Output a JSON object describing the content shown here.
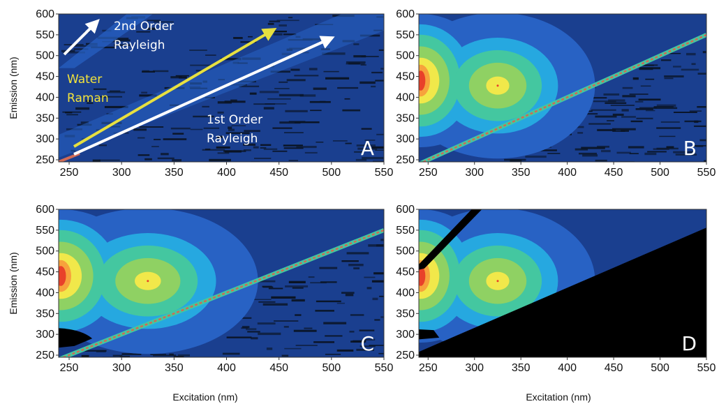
{
  "chart_data": [
    {
      "panel": "A",
      "type": "heatmap",
      "xlabel": "",
      "ylabel": "Emission (nm)",
      "xlim": [
        240,
        550
      ],
      "ylim": [
        245,
        600
      ],
      "xticks": [
        "250",
        "300",
        "350",
        "400",
        "450",
        "500",
        "550"
      ],
      "yticks": [
        "250",
        "300",
        "350",
        "400",
        "450",
        "500",
        "550",
        "600"
      ],
      "panel_label": "A",
      "annotations": [
        {
          "lines": [
            "2nd Order",
            "Rayleigh"
          ],
          "color": "#ffffff"
        },
        {
          "lines": [
            "Water",
            "Raman"
          ],
          "color": "#f2e33c"
        },
        {
          "lines": [
            "1st Order",
            "Rayleigh"
          ],
          "color": "#ffffff"
        }
      ],
      "scatter_lines": [
        {
          "name": "1st Order Rayleigh",
          "x": [
            240,
            550
          ],
          "y": [
            240,
            550
          ]
        },
        {
          "name": "Water Raman",
          "x": [
            240,
            440
          ],
          "y": [
            267,
            540
          ]
        },
        {
          "name": "2nd Order Rayleigh",
          "x": [
            240,
            300
          ],
          "y": [
            480,
            600
          ]
        }
      ],
      "fluorescence": false,
      "masked": false
    },
    {
      "panel": "B",
      "type": "heatmap",
      "xlabel": "",
      "ylabel": "",
      "xlim": [
        240,
        550
      ],
      "ylim": [
        245,
        600
      ],
      "xticks": [
        "250",
        "300",
        "350",
        "400",
        "450",
        "500",
        "550"
      ],
      "yticks": [
        "250",
        "300",
        "350",
        "400",
        "450",
        "500",
        "550",
        "600"
      ],
      "panel_label": "B",
      "peaks": [
        {
          "name": "peak-1",
          "x": 242,
          "y": 440
        },
        {
          "name": "peak-2",
          "x": 325,
          "y": 428
        }
      ],
      "fluorescence": true,
      "masked": false
    },
    {
      "panel": "C",
      "type": "heatmap",
      "xlabel": "Excitation (nm)",
      "ylabel": "Emission (nm)",
      "xlim": [
        240,
        550
      ],
      "ylim": [
        245,
        600
      ],
      "xticks": [
        "250",
        "300",
        "350",
        "400",
        "450",
        "500",
        "550"
      ],
      "yticks": [
        "250",
        "300",
        "350",
        "400",
        "450",
        "500",
        "550",
        "600"
      ],
      "panel_label": "C",
      "peaks": [
        {
          "name": "peak-1",
          "x": 242,
          "y": 440
        },
        {
          "name": "peak-2",
          "x": 325,
          "y": 428
        }
      ],
      "fluorescence": true,
      "masked": false
    },
    {
      "panel": "D",
      "type": "heatmap",
      "xlabel": "Excitation (nm)",
      "ylabel": "",
      "xlim": [
        240,
        550
      ],
      "ylim": [
        245,
        600
      ],
      "xticks": [
        "250",
        "300",
        "350",
        "400",
        "450",
        "500",
        "550"
      ],
      "yticks": [
        "250",
        "300",
        "350",
        "400",
        "450",
        "500",
        "550",
        "600"
      ],
      "panel_label": "D",
      "peaks": [
        {
          "name": "peak-1",
          "x": 242,
          "y": 440
        },
        {
          "name": "peak-2",
          "x": 325,
          "y": 428
        }
      ],
      "fluorescence": true,
      "masked": true
    }
  ],
  "colors": {
    "background": "#1a3f8f",
    "level1": "#2862c4",
    "level2": "#26a8e0",
    "level3": "#44c7a0",
    "level4": "#8fd163",
    "level5": "#f1e84a",
    "level6": "#f7a23c",
    "level7": "#e8412a",
    "noise": "#0a1424",
    "mask": "#000000",
    "rayleigh": "#d06a55",
    "arrow_white": "#ffffff",
    "arrow_yellow": "#e7e040"
  }
}
